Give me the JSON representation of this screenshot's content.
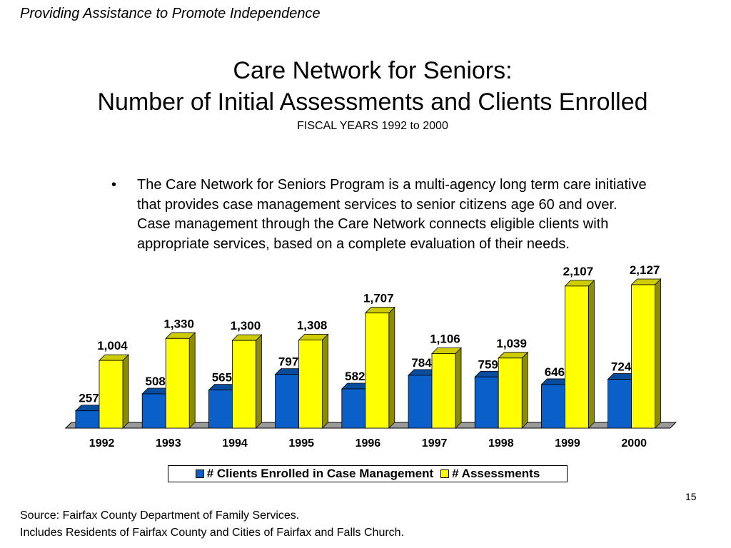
{
  "header": {
    "tagline": "Providing Assistance to Promote Independence"
  },
  "slide": {
    "title_line1": "Care Network for Seniors:",
    "title_line2": "Number of Initial Assessments and Clients Enrolled",
    "subtitle": "FISCAL YEARS 1992 to 2000",
    "bullet_symbol": "•",
    "bullet_text": "The Care Network for Seniors Program is a multi-agency long term care initiative that provides case management services to senior citizens age 60 and over.  Case management through the Care Network connects eligible clients with appropriate services, based on a complete evaluation of their needs.",
    "page_number": "15",
    "source_line1": "Source:  Fairfax County Department of Family Services.",
    "source_line2": "Includes Residents of Fairfax County and Cities of Fairfax and Falls Church."
  },
  "chart_data": {
    "type": "bar",
    "categories": [
      "1992",
      "1993",
      "1994",
      "1995",
      "1996",
      "1997",
      "1998",
      "1999",
      "2000"
    ],
    "series": [
      {
        "name": "# Clients Enrolled in Case Management",
        "color": "#0a5fc8",
        "values": [
          257,
          508,
          565,
          797,
          582,
          784,
          759,
          646,
          724
        ],
        "labels": [
          "257",
          "508",
          "565",
          "797",
          "582",
          "784",
          "759",
          "646",
          "724"
        ]
      },
      {
        "name": "# Assessments",
        "color": "#ffff00",
        "values": [
          1004,
          1330,
          1300,
          1308,
          1707,
          1106,
          1039,
          2107,
          2127
        ],
        "labels": [
          "1,004",
          "1,330",
          "1,300",
          "1,308",
          "1,707",
          "1,106",
          "1,039",
          "2,107",
          "2,127"
        ]
      }
    ],
    "ylim": [
      0,
      2200
    ],
    "grid": false,
    "legend_position": "bottom",
    "style": "3d-bar"
  }
}
